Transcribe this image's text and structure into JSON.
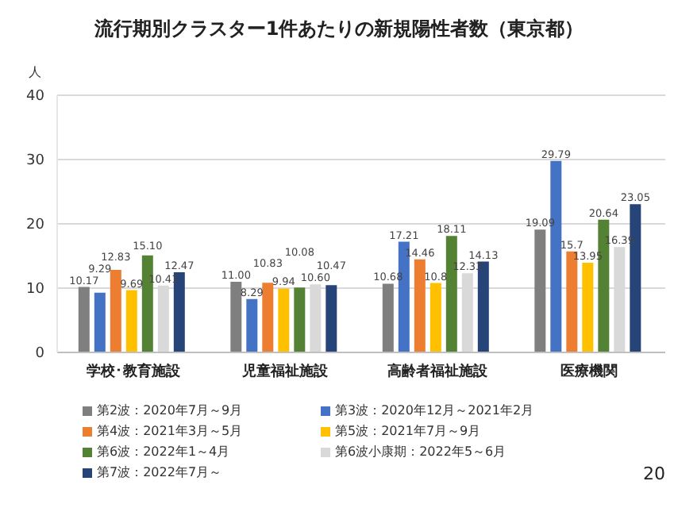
{
  "chart_data": {
    "type": "bar",
    "title": "流行期別クラスター1件あたりの新規陽性者数（東京都）",
    "ylabel": "人",
    "categories": [
      "学校･教育施設",
      "児童福祉施設",
      "高齢者福祉施設",
      "医療機関"
    ],
    "series": [
      {
        "name": "第2波：2020年7月～9月",
        "color": "#7f7f7f",
        "values": [
          10.17,
          11.0,
          10.68,
          19.09
        ],
        "value_labels": [
          "10.17",
          "11.00",
          "10.68",
          "19.09"
        ]
      },
      {
        "name": "第3波：2020年12月～2021年2月",
        "color": "#4472c4",
        "values": [
          9.29,
          8.29,
          17.21,
          29.79
        ],
        "value_labels": [
          "9.29",
          "8.29",
          "17.21",
          "29.79"
        ]
      },
      {
        "name": "第4波：2021年3月～5月",
        "color": "#ed7d31",
        "values": [
          12.83,
          10.83,
          14.46,
          15.7
        ],
        "value_labels": [
          "12.83",
          "10.83",
          "14.46",
          "15.7"
        ]
      },
      {
        "name": "第5波：2021年7月～9月",
        "color": "#ffc000",
        "values": [
          9.69,
          9.94,
          10.8,
          13.95
        ],
        "value_labels": [
          "9.69",
          "9.94",
          "10.8",
          "13.95"
        ]
      },
      {
        "name": "第6波：2022年1～4月",
        "color": "#548235",
        "values": [
          15.1,
          10.08,
          18.11,
          20.64
        ],
        "value_labels": [
          "15.10",
          "10.08",
          "18.11",
          "20.64"
        ]
      },
      {
        "name": "第6波小康期：2022年5～6月",
        "color": "#d9d9d9",
        "values": [
          10.41,
          10.6,
          12.33,
          16.39
        ],
        "value_labels": [
          "10.41",
          "10.60",
          "12.33",
          "16.39"
        ]
      },
      {
        "name": "第7波：2022年7月～",
        "color": "#264478",
        "values": [
          12.47,
          10.47,
          14.13,
          23.05
        ],
        "value_labels": [
          "12.47",
          "10.47",
          "14.13",
          "23.05"
        ]
      }
    ],
    "ylim": [
      0,
      40
    ],
    "yticks": [
      0,
      10,
      20,
      30,
      40
    ],
    "grid": "y",
    "legend": "bottom",
    "annotations": [
      "20"
    ]
  }
}
